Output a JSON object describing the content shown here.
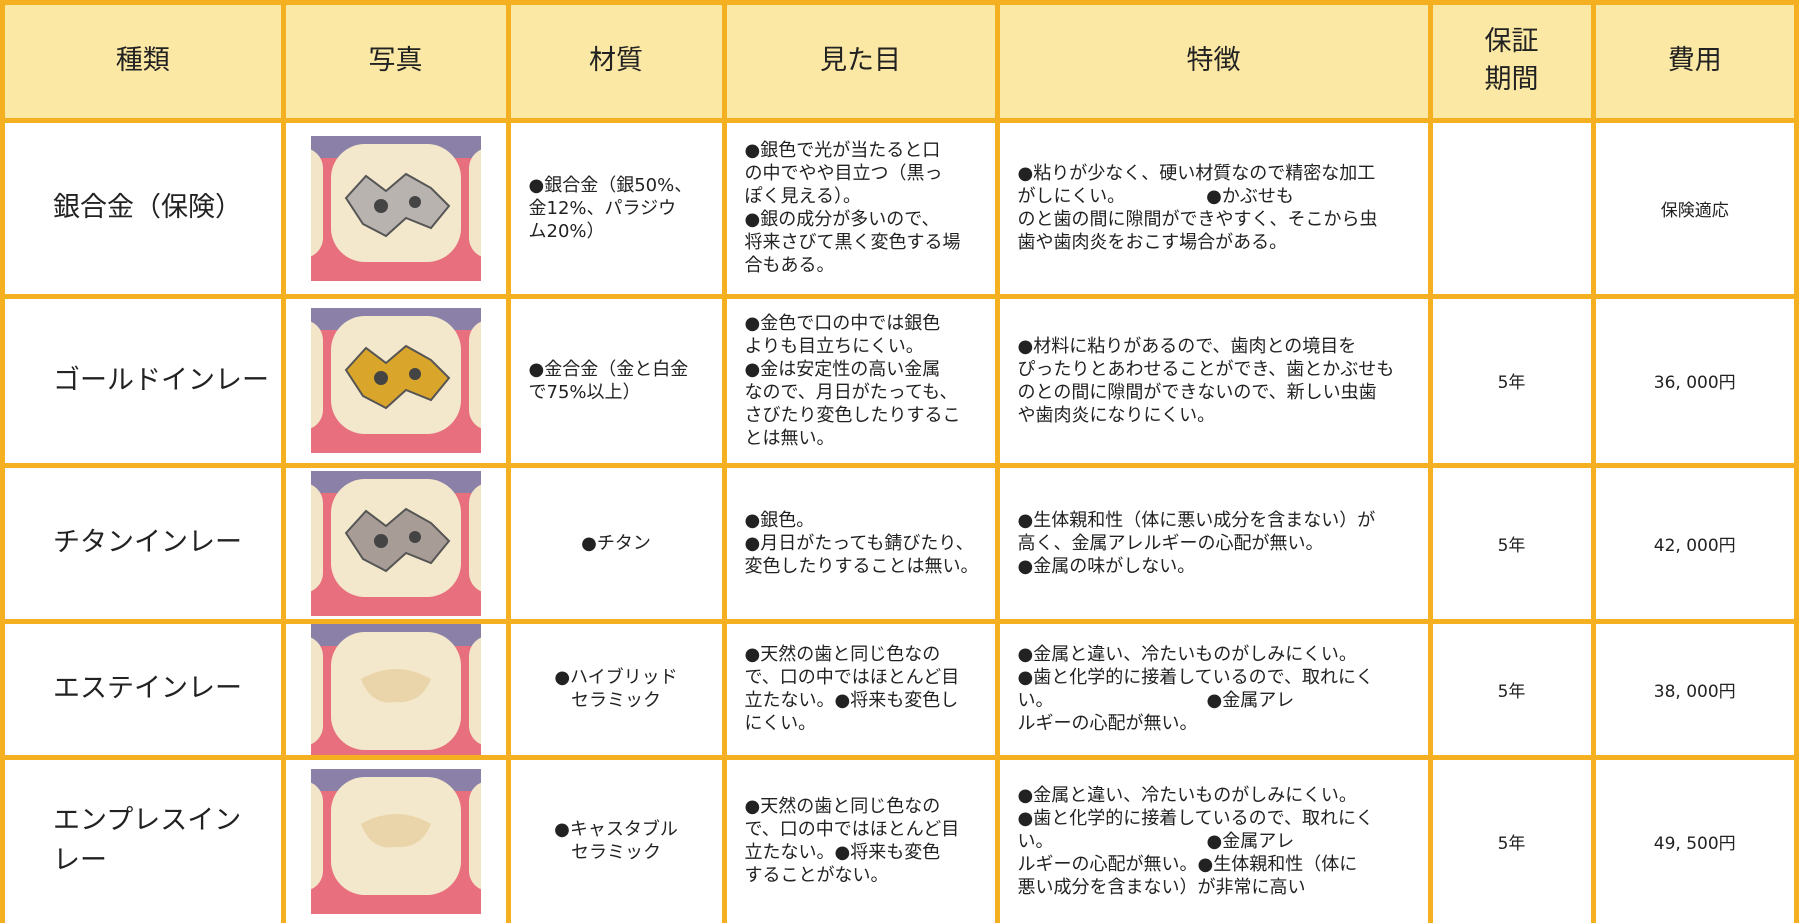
{
  "table": {
    "headers": [
      [
        "種類"
      ],
      [
        "写真"
      ],
      [
        "材質"
      ],
      [
        "見た目"
      ],
      [
        "特徴"
      ],
      [
        "保証",
        "期間"
      ],
      [
        "費用"
      ]
    ],
    "rows": [
      {
        "type": [
          "銀合金（保険）"
        ],
        "material": [
          "●銀合金（銀50%、",
          "金12%、パラジウ",
          "ム20%）"
        ],
        "appearance": [
          "●銀色で光が当たると口",
          "の中でやや目立つ（黒っ",
          "ぽく見える）。",
          "●銀の成分が多いので、",
          "将来さびて黒く変色する場",
          "合もある。"
        ],
        "features": [
          "●粘りが少なく、硬い材質なので精密な加工",
          "がしにくい。　　　　　●かぶせも",
          "のと歯の間に隙間ができやすく、そこから虫",
          "歯や歯肉炎をおこす場合がある。"
        ],
        "cost": "保険適応"
      },
      {
        "type": [
          "ゴールドインレー"
        ],
        "material": [
          "●金合金（金と白金",
          "で75%以上）"
        ],
        "appearance": [
          "●金色で口の中では銀色",
          "よりも目立ちにくい。",
          "●金は安定性の高い金属",
          "なので、月日がたっても、",
          "さびたり変色したりするこ",
          "とは無い。"
        ],
        "features": [
          "●材料に粘りがあるので、歯肉との境目を",
          "ぴったりとあわせることができ、歯とかぶせも",
          "のとの間に隙間ができないので、新しい虫歯",
          "や歯肉炎になりにくい。"
        ],
        "warranty": "5年",
        "cost": "36, 000円"
      },
      {
        "type": [
          "チタンインレー"
        ],
        "material": [
          "●チタン"
        ],
        "appearance": [
          "●銀色。",
          "●月日がたっても錆びたり、",
          "変色したりすることは無い。"
        ],
        "features": [
          "●生体親和性（体に悪い成分を含まない）が",
          "高く、金属アレルギーの心配が無い。",
          "●金属の味がしない。"
        ],
        "warranty": "5年",
        "cost": "42, 000円"
      },
      {
        "type": [
          "エステインレー"
        ],
        "material": [
          "●ハイブリッド",
          "セラミック"
        ],
        "appearance": [
          "●天然の歯と同じ色なの",
          "で、口の中ではほとんど目",
          "立たない。●将来も変色し",
          "にくい。"
        ],
        "features": [
          "●金属と違い、冷たいものがしみにくい。",
          "●歯と化学的に接着しているので、取れにく",
          "い。　　　　　　　　　●金属アレ",
          "ルギーの心配が無い。"
        ],
        "warranty": "5年",
        "cost": "38, 000円"
      },
      {
        "type": [
          "エンプレスイン",
          "レー"
        ],
        "material": [
          "●キャスタブル",
          "セラミック"
        ],
        "appearance": [
          "●天然の歯と同じ色なの",
          "で、口の中ではほとんど目",
          "立たない。●将来も変色",
          "することがない。"
        ],
        "features": [
          "●金属と違い、冷たいものがしみにくい。",
          "●歯と化学的に接着しているので、取れにく",
          "い。　　　　　　　　　●金属アレ",
          "ルギーの心配が無い。●生体親和性（体に",
          "悪い成分を含まない）が非常に高い"
        ],
        "warranty": "5年",
        "cost": "49, 500円"
      }
    ]
  }
}
